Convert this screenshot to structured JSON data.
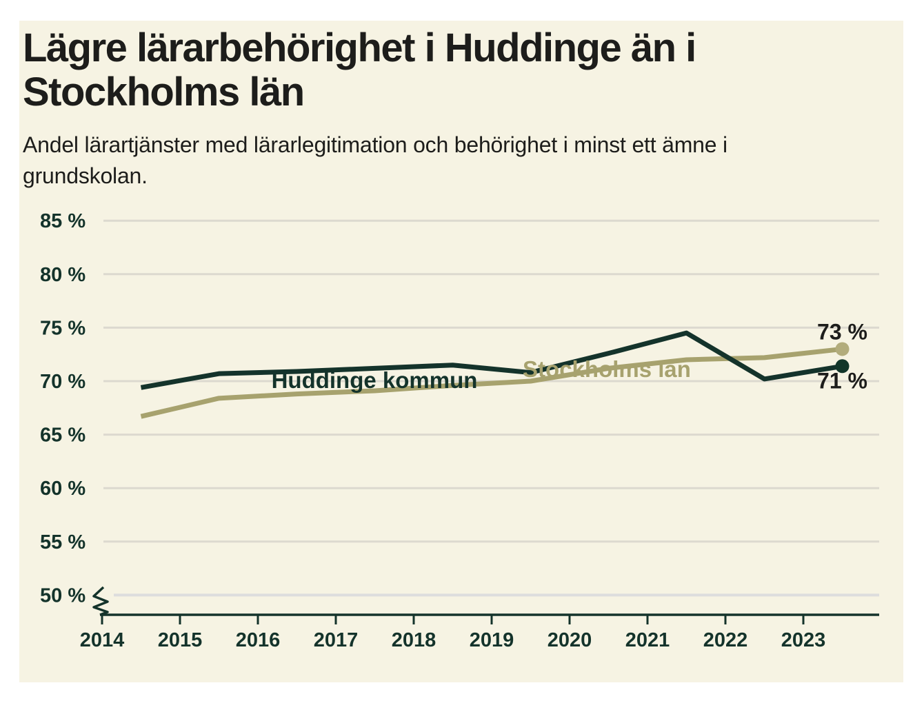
{
  "page": {
    "background": "#ffffff",
    "panel_background": "#f6f3e3",
    "heading_color": "#1d1d1b"
  },
  "header": {
    "title_lines": [
      "Lägre lärarbehörighet i Huddinge än i",
      "Stockholms län"
    ],
    "subtitle_lines": [
      "Andel lärartjänster med lärarlegitimation och behörighet i minst ett ämne i",
      "grundskolan."
    ]
  },
  "chart_data": {
    "type": "line",
    "x": [
      2014,
      2015,
      2016,
      2017,
      2018,
      2019,
      2020,
      2021,
      2022,
      2023
    ],
    "x_tick_labels": [
      "2014",
      "2015",
      "2016",
      "2017",
      "2018",
      "2019",
      "2020",
      "2021",
      "2022",
      "2023"
    ],
    "point_offset_years": 0.5,
    "y_ticks": [
      85,
      80,
      75,
      70,
      65,
      60,
      55,
      50
    ],
    "y_tick_labels": [
      "85 %",
      "80 %",
      "75 %",
      "70 %",
      "65 %",
      "60 %",
      "55 %",
      "50 %"
    ],
    "ylim": [
      50,
      85
    ],
    "grid": "horizontal",
    "axis_break_at_50": true,
    "series": [
      {
        "name": "Stockholms län",
        "values": [
          66.7,
          68.4,
          68.8,
          69.1,
          69.6,
          70.0,
          71.2,
          72.0,
          72.2,
          73.0
        ],
        "color": "#a7a26e",
        "dot_color": "#b2ac7c",
        "end_label": "73 %"
      },
      {
        "name": "Huddinge kommun",
        "values": [
          69.4,
          70.7,
          70.9,
          71.2,
          71.5,
          70.8,
          72.6,
          74.5,
          70.2,
          71.4
        ],
        "color": "#14332b",
        "dot_color": "#123629",
        "end_label": "71 %"
      }
    ],
    "colors": {
      "axis": "#14332b",
      "tick_text": "#14332b",
      "grid": "#dcd9cf",
      "grid_50": "#dddddd",
      "value_label": "#1d1d1b"
    }
  }
}
